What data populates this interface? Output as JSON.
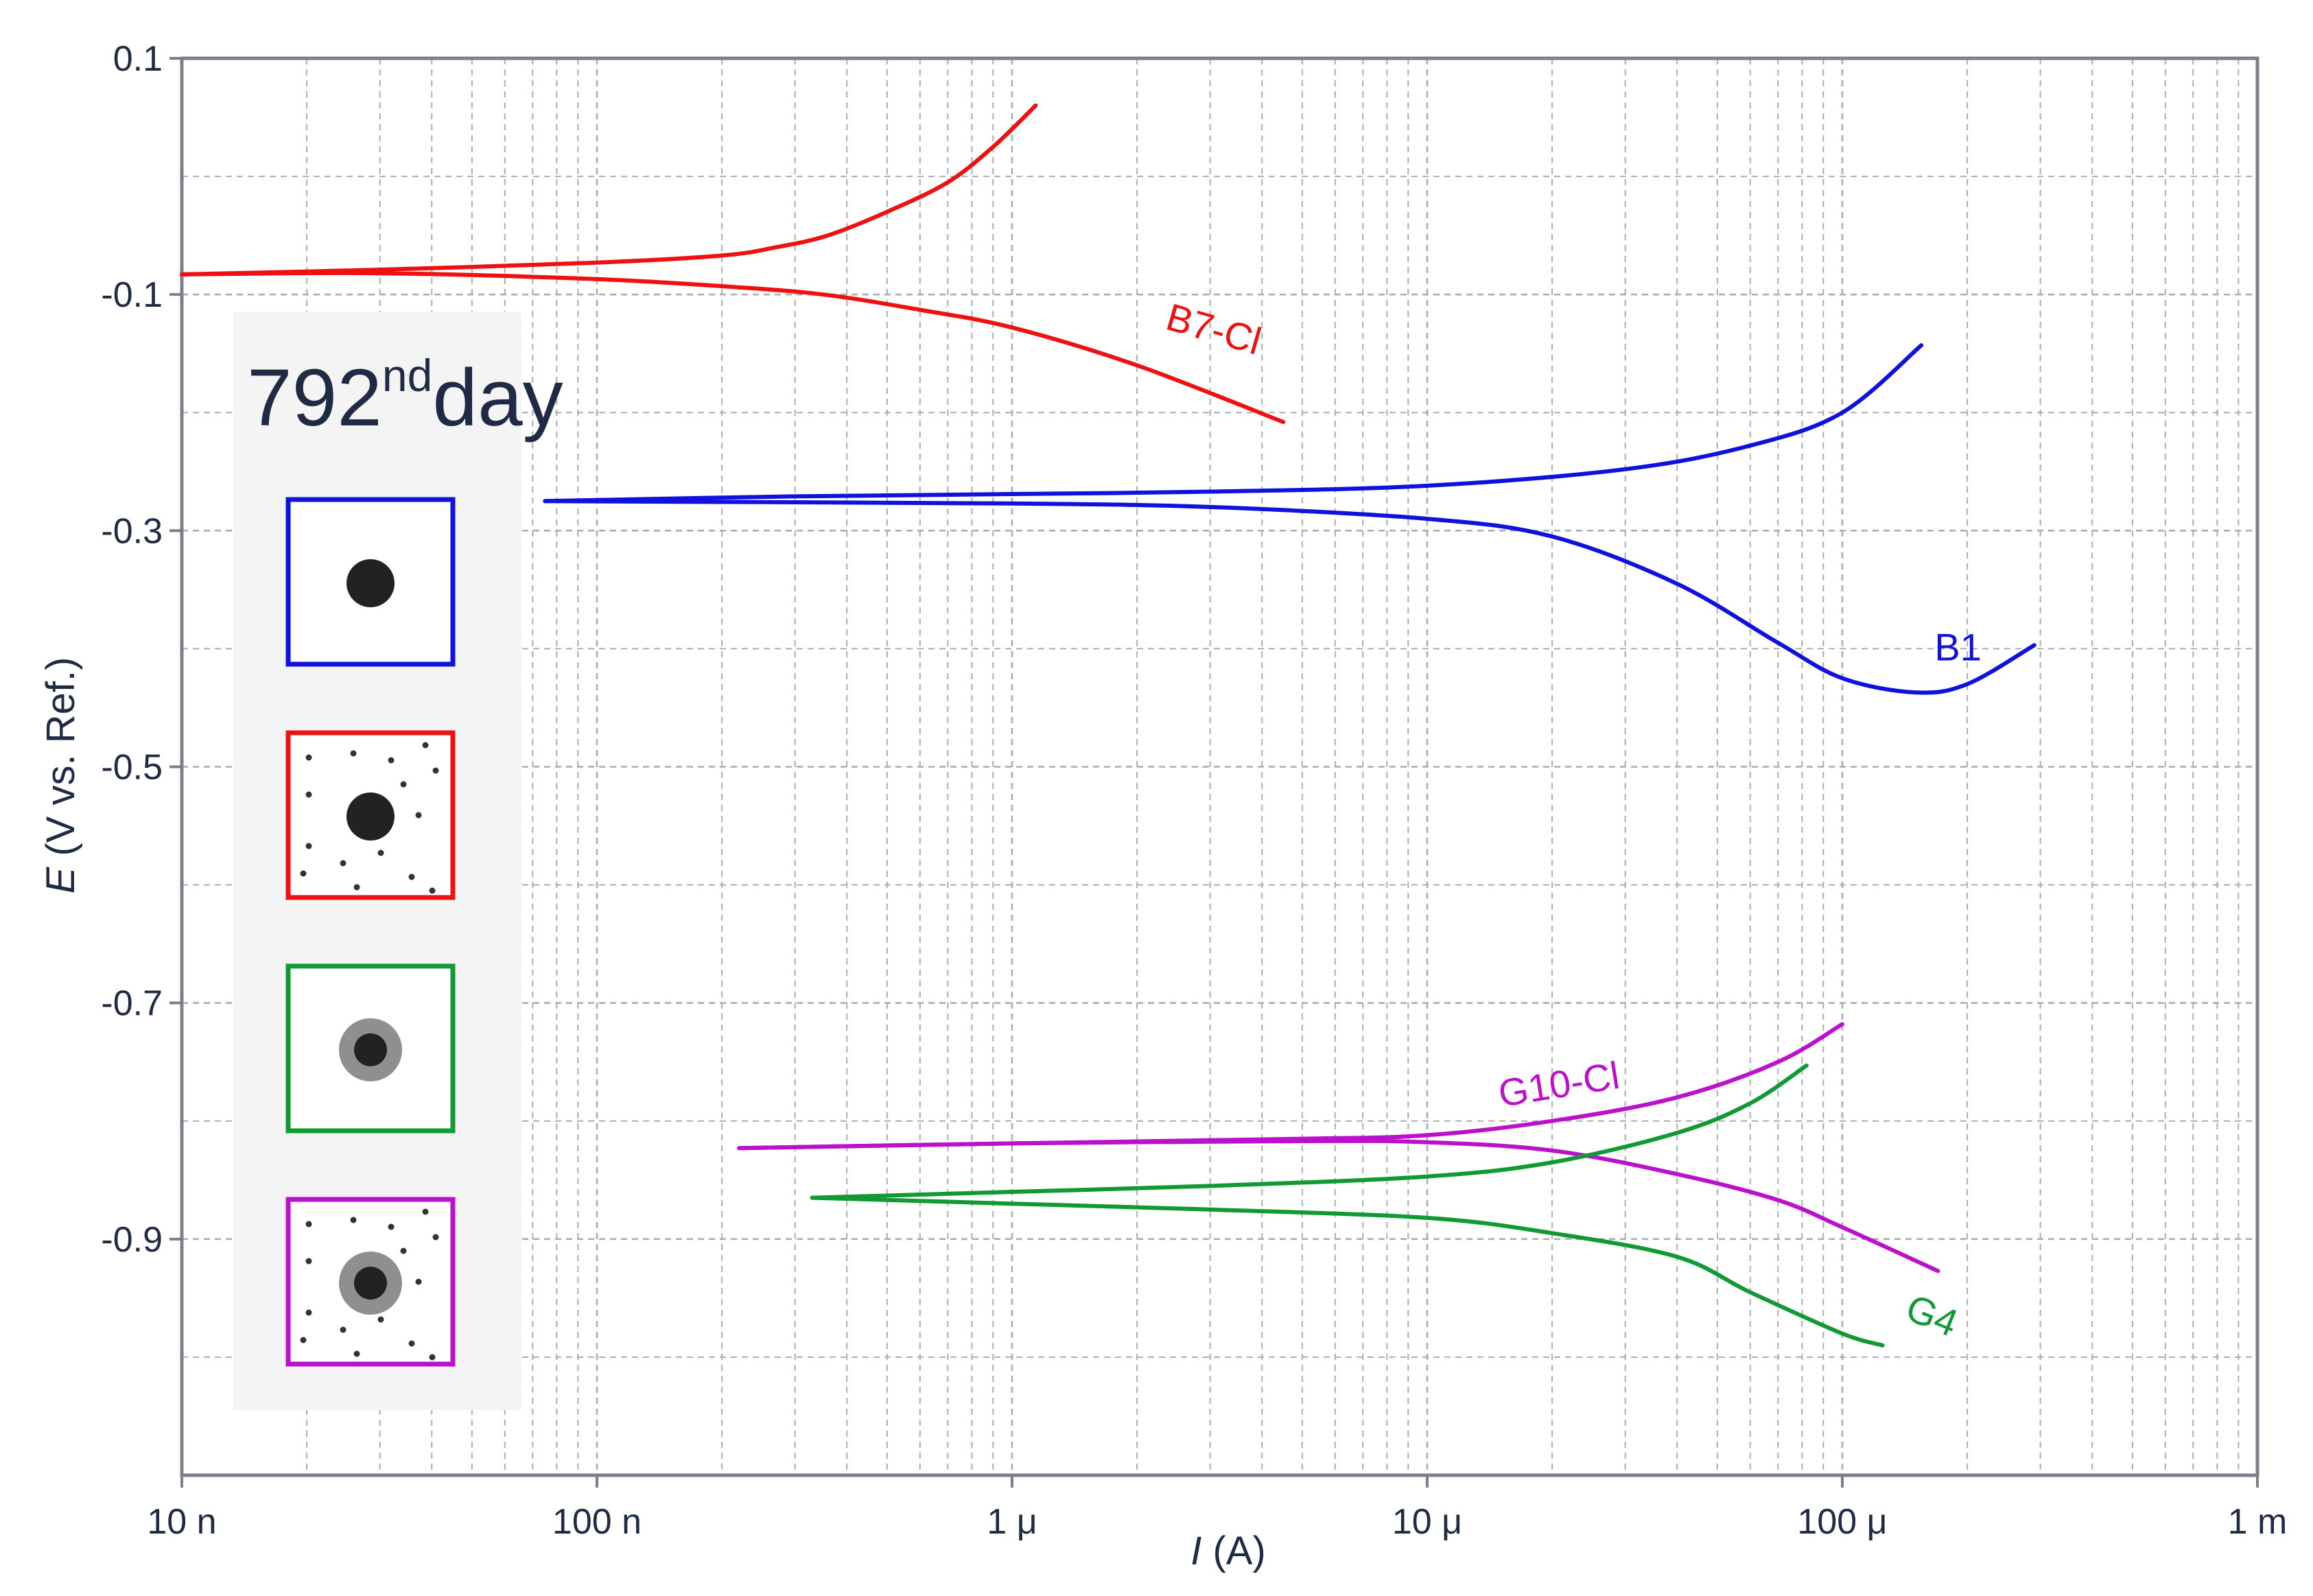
{
  "chart_data": {
    "type": "line",
    "xlabel_var": "I",
    "xlabel_unit": " (A)",
    "ylabel_var": "E",
    "ylabel_unit": " (V vs. Ref.)",
    "x_scale": "log",
    "xlim": [
      1e-08,
      0.001
    ],
    "ylim": [
      -1.1,
      0.1
    ],
    "x_ticks": [
      {
        "value": 1e-08,
        "label": "10 n"
      },
      {
        "value": 1e-07,
        "label": "100 n"
      },
      {
        "value": 1e-06,
        "label": "1 μ"
      },
      {
        "value": 1e-05,
        "label": "10 μ"
      },
      {
        "value": 0.0001,
        "label": "100 μ"
      },
      {
        "value": 0.001,
        "label": "1 m"
      }
    ],
    "y_ticks": [
      {
        "value": 0.1,
        "label": "0.1"
      },
      {
        "value": -0.1,
        "label": "-0.1"
      },
      {
        "value": -0.3,
        "label": "-0.3"
      },
      {
        "value": -0.5,
        "label": "-0.5"
      },
      {
        "value": -0.7,
        "label": "-0.7"
      },
      {
        "value": -0.9,
        "label": "-0.9"
      }
    ],
    "grid": true,
    "annotation": {
      "main": "792",
      "sup": "nd",
      "rest": "day"
    },
    "series": [
      {
        "name": "B7-Cl",
        "color": "#ee1111",
        "label_at": [
          3e-06,
          -0.14
        ],
        "label_rotate": 16,
        "anodic": [
          [
            1e-08,
            -0.083
          ],
          [
            3e-08,
            -0.079
          ],
          [
            1e-07,
            -0.073
          ],
          [
            2e-07,
            -0.067
          ],
          [
            2.7e-07,
            -0.06
          ],
          [
            3.6e-07,
            -0.05
          ],
          [
            5e-07,
            -0.03
          ],
          [
            7e-07,
            -0.005
          ],
          [
            9e-07,
            0.025
          ],
          [
            1.14e-06,
            0.06
          ]
        ],
        "cathodic": [
          [
            1e-08,
            -0.083
          ],
          [
            3e-08,
            -0.082
          ],
          [
            1e-07,
            -0.087
          ],
          [
            2e-07,
            -0.093
          ],
          [
            3.5e-07,
            -0.1
          ],
          [
            6e-07,
            -0.113
          ],
          [
            1e-06,
            -0.128
          ],
          [
            2e-06,
            -0.16
          ],
          [
            4.5e-06,
            -0.208
          ]
        ]
      },
      {
        "name": "B1",
        "color": "#1111dd",
        "label_at": [
          0.00019,
          -0.41
        ],
        "label_rotate": 0,
        "anodic": [
          [
            7.5e-08,
            -0.275
          ],
          [
            3e-07,
            -0.271
          ],
          [
            1e-06,
            -0.269
          ],
          [
            3e-06,
            -0.267
          ],
          [
            1e-05,
            -0.262
          ],
          [
            3e-05,
            -0.248
          ],
          [
            6e-05,
            -0.228
          ],
          [
            0.0001,
            -0.2
          ],
          [
            0.000155,
            -0.143
          ]
        ],
        "cathodic": [
          [
            7.5e-08,
            -0.275
          ],
          [
            3e-07,
            -0.276
          ],
          [
            1e-06,
            -0.277
          ],
          [
            3e-06,
            -0.28
          ],
          [
            1e-05,
            -0.29
          ],
          [
            2e-05,
            -0.305
          ],
          [
            4e-05,
            -0.345
          ],
          [
            7e-05,
            -0.395
          ],
          [
            0.0001,
            -0.425
          ],
          [
            0.00015,
            -0.437
          ],
          [
            0.0002,
            -0.43
          ],
          [
            0.00029,
            -0.397
          ]
        ]
      },
      {
        "name": "G10-Cl",
        "color": "#bb11cc",
        "label_at": [
          2.1e-05,
          -0.78
        ],
        "label_rotate": -9,
        "anodic": [
          [
            2.2e-07,
            -0.823
          ],
          [
            1e-06,
            -0.819
          ],
          [
            5e-06,
            -0.815
          ],
          [
            1e-05,
            -0.812
          ],
          [
            2e-05,
            -0.8
          ],
          [
            4e-05,
            -0.78
          ],
          [
            7e-05,
            -0.75
          ],
          [
            0.0001,
            -0.718
          ]
        ],
        "cathodic": [
          [
            2.2e-07,
            -0.823
          ],
          [
            1e-06,
            -0.819
          ],
          [
            5e-06,
            -0.817
          ],
          [
            1e-05,
            -0.818
          ],
          [
            2e-05,
            -0.825
          ],
          [
            4e-05,
            -0.845
          ],
          [
            7e-05,
            -0.867
          ],
          [
            0.0001,
            -0.89
          ],
          [
            0.00017,
            -0.927
          ]
        ]
      },
      {
        "name": "G4",
        "color": "#119933",
        "label_at": [
          0.00016,
          -0.975
        ],
        "label_rotate": 22,
        "anodic": [
          [
            3.3e-07,
            -0.865
          ],
          [
            1e-06,
            -0.86
          ],
          [
            3e-06,
            -0.855
          ],
          [
            1e-05,
            -0.847
          ],
          [
            2e-05,
            -0.835
          ],
          [
            4e-05,
            -0.81
          ],
          [
            6e-05,
            -0.785
          ],
          [
            8.2e-05,
            -0.753
          ]
        ],
        "cathodic": [
          [
            3.3e-07,
            -0.865
          ],
          [
            1e-06,
            -0.87
          ],
          [
            3e-06,
            -0.875
          ],
          [
            1e-05,
            -0.882
          ],
          [
            2e-05,
            -0.895
          ],
          [
            4e-05,
            -0.915
          ],
          [
            6e-05,
            -0.945
          ],
          [
            0.0001,
            -0.98
          ],
          [
            0.000125,
            -0.99
          ]
        ]
      }
    ],
    "legend_icons": [
      {
        "name": "B1",
        "border": "#1111dd",
        "dots": false,
        "halo": false
      },
      {
        "name": "B7-Cl",
        "border": "#ee1111",
        "dots": true,
        "halo": false
      },
      {
        "name": "G4",
        "border": "#119933",
        "dots": false,
        "halo": true
      },
      {
        "name": "G10-Cl",
        "border": "#bb11cc",
        "dots": true,
        "halo": true
      }
    ]
  }
}
